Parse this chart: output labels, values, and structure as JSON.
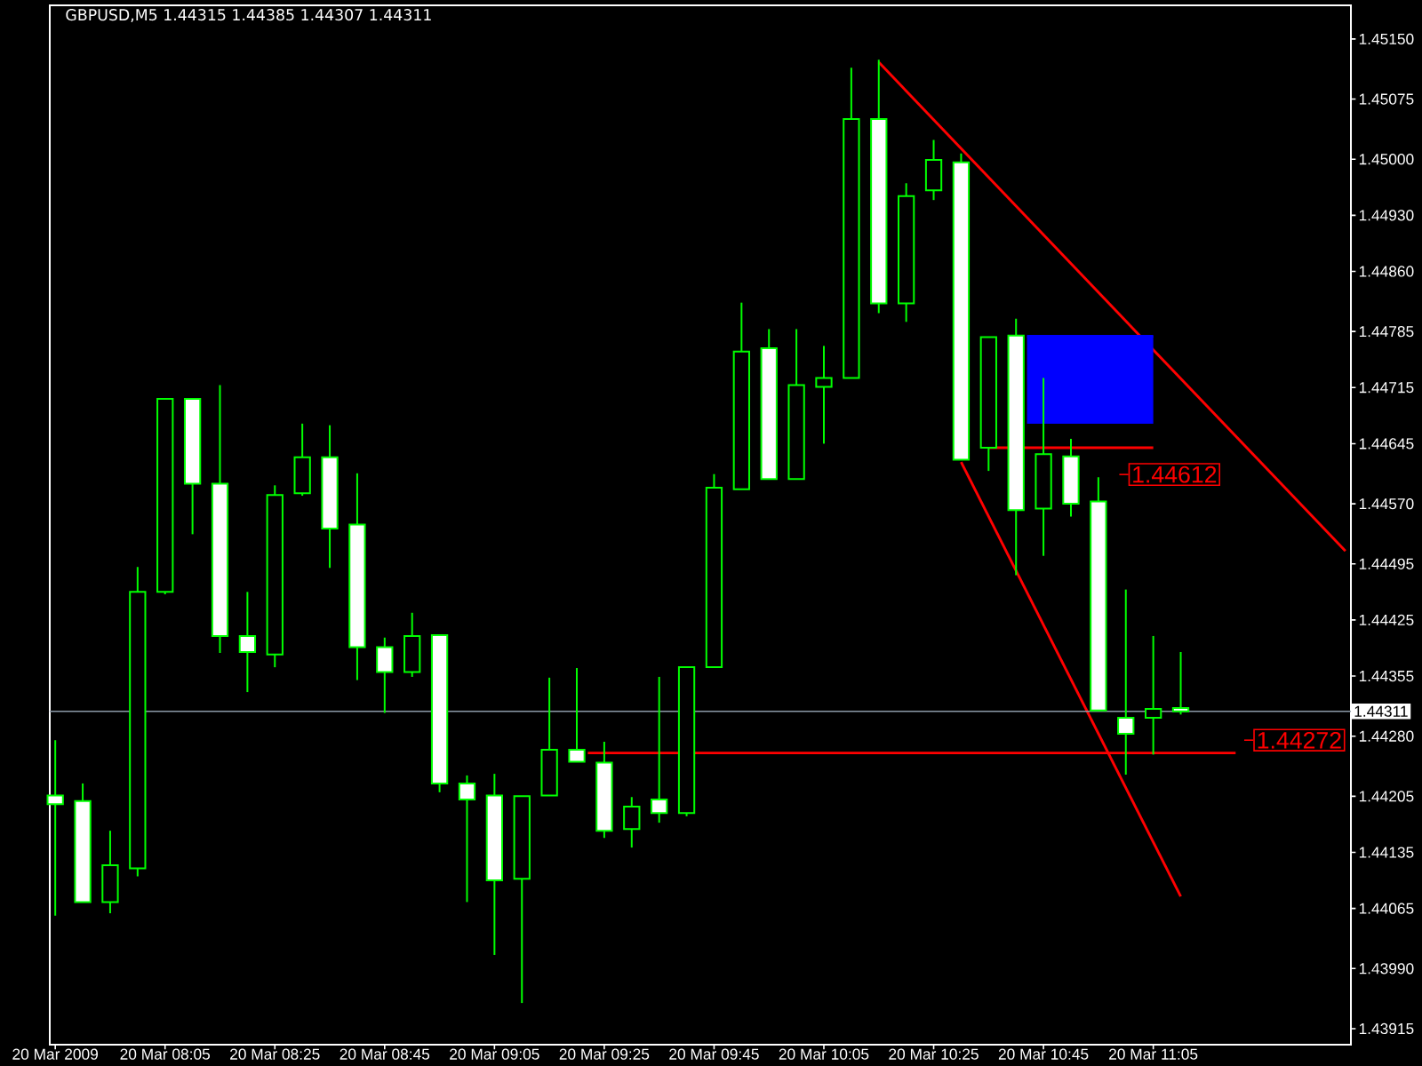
{
  "chart_data": {
    "type": "candlestick",
    "title": "GBPUSD,M5  1.44315 1.44385 1.44307 1.44311",
    "color": "#00ff00",
    "x": [
      "2009-03-20T07:45",
      "2009-03-20T07:50",
      "2009-03-20T07:55",
      "2009-03-20T08:00",
      "2009-03-20T08:05",
      "2009-03-20T08:10",
      "2009-03-20T08:15",
      "2009-03-20T08:20",
      "2009-03-20T08:25",
      "2009-03-20T08:30",
      "2009-03-20T08:35",
      "2009-03-20T08:40",
      "2009-03-20T08:45",
      "2009-03-20T08:50",
      "2009-03-20T08:55",
      "2009-03-20T09:00",
      "2009-03-20T09:05",
      "2009-03-20T09:10",
      "2009-03-20T09:15",
      "2009-03-20T09:20",
      "2009-03-20T09:25",
      "2009-03-20T09:30",
      "2009-03-20T09:35",
      "2009-03-20T09:40",
      "2009-03-20T09:45",
      "2009-03-20T09:50",
      "2009-03-20T09:55",
      "2009-03-20T10:00",
      "2009-03-20T10:05",
      "2009-03-20T10:10",
      "2009-03-20T10:15",
      "2009-03-20T10:20",
      "2009-03-20T10:25",
      "2009-03-20T10:30",
      "2009-03-20T10:35",
      "2009-03-20T10:40",
      "2009-03-20T10:45",
      "2009-03-20T10:50",
      "2009-03-20T10:55",
      "2009-03-20T11:00",
      "2009-03-20T11:05",
      "2009-03-20T11:10"
    ],
    "ohlc": [
      [
        1.44206,
        1.44275,
        1.44056,
        1.44195
      ],
      [
        1.44199,
        1.44221,
        1.44073,
        1.44073
      ],
      [
        1.44073,
        1.44162,
        1.44059,
        1.44119
      ],
      [
        1.44115,
        1.44491,
        1.44105,
        1.4446
      ],
      [
        1.4446,
        1.44701,
        1.44457,
        1.44701
      ],
      [
        1.44701,
        1.44701,
        1.44532,
        1.44595
      ],
      [
        1.44595,
        1.44718,
        1.44384,
        1.44405
      ],
      [
        1.44405,
        1.4446,
        1.44335,
        1.44385
      ],
      [
        1.44382,
        1.44593,
        1.44366,
        1.44581
      ],
      [
        1.44583,
        1.4467,
        1.4458,
        1.44628
      ],
      [
        1.44628,
        1.44668,
        1.4449,
        1.44539
      ],
      [
        1.44544,
        1.44608,
        1.4435,
        1.44391
      ],
      [
        1.44391,
        1.44403,
        1.44309,
        1.4436
      ],
      [
        1.4436,
        1.44434,
        1.44354,
        1.44405
      ],
      [
        1.44406,
        1.44406,
        1.4421,
        1.44221
      ],
      [
        1.44221,
        1.44231,
        1.44073,
        1.44201
      ],
      [
        1.44206,
        1.44233,
        1.44007,
        1.441
      ],
      [
        1.44102,
        1.44205,
        1.43947,
        1.44205
      ],
      [
        1.44206,
        1.44353,
        1.44206,
        1.44263
      ],
      [
        1.44263,
        1.44365,
        1.44248,
        1.44248
      ],
      [
        1.44247,
        1.44273,
        1.44153,
        1.44162
      ],
      [
        1.44164,
        1.44204,
        1.44141,
        1.44192
      ],
      [
        1.44201,
        1.44354,
        1.44172,
        1.44184
      ],
      [
        1.44184,
        1.44366,
        1.4418,
        1.44366
      ],
      [
        1.44366,
        1.44607,
        1.44366,
        1.4459
      ],
      [
        1.44588,
        1.44821,
        1.44588,
        1.4476
      ],
      [
        1.44764,
        1.44788,
        1.44601,
        1.44601
      ],
      [
        1.44601,
        1.44788,
        1.44601,
        1.44718
      ],
      [
        1.44716,
        1.44767,
        1.44645,
        1.44727
      ],
      [
        1.44727,
        1.45114,
        1.44727,
        1.4505
      ],
      [
        1.4505,
        1.45124,
        1.44808,
        1.4482
      ],
      [
        1.4482,
        1.4497,
        1.44797,
        1.44954
      ],
      [
        1.44961,
        1.45024,
        1.44949,
        1.44999
      ],
      [
        1.44996,
        1.45007,
        1.44625,
        1.44625
      ],
      [
        1.4464,
        1.44778,
        1.44611,
        1.44778
      ],
      [
        1.4478,
        1.44801,
        1.44481,
        1.44562
      ],
      [
        1.44564,
        1.44727,
        1.44505,
        1.44632
      ],
      [
        1.44629,
        1.44651,
        1.44554,
        1.4457
      ],
      [
        1.44573,
        1.44603,
        1.44312,
        1.44312
      ],
      [
        1.44303,
        1.44463,
        1.44232,
        1.44283
      ],
      [
        1.44303,
        1.44405,
        1.44257,
        1.44314
      ],
      [
        1.44315,
        1.44385,
        1.44307,
        1.44311
      ]
    ],
    "series": [
      {
        "type": "line",
        "color": "#ff0000",
        "x": [
          "2009-03-20T10:15",
          "2009-03-20T11:40"
        ],
        "values": [
          1.45121,
          1.44511
        ]
      },
      {
        "type": "line",
        "color": "#ff0000",
        "x": [
          "2009-03-20T10:30",
          "2009-03-20T11:10"
        ],
        "values": [
          1.44622,
          1.4408
        ]
      },
      {
        "type": "line",
        "color": "#ff0000",
        "x": [
          "2009-03-20T10:35",
          "2009-03-20T11:05"
        ],
        "values": [
          1.4464,
          1.4464
        ]
      },
      {
        "type": "line",
        "color": "#ff0000",
        "x": [
          "2009-03-20T09:22",
          "2009-03-20T11:20"
        ],
        "values": [
          1.44259,
          1.44259
        ]
      },
      {
        "type": "line",
        "color": "#0000ff",
        "x": [
          "2009-03-20T10:42",
          "2009-03-20T11:05"
        ],
        "values": [
          1.44779,
          1.44779
        ],
        "lower": [
          1.4467,
          1.4467
        ],
        "upper": [
          1.44779,
          1.44779
        ]
      }
    ],
    "ref_lines": [
      {
        "axis": "y",
        "value": 1.44311,
        "label": "1.44311",
        "color": "#8c9aa8"
      }
    ],
    "annotations": [
      "1.44612",
      "1.44272"
    ],
    "xlim": [
      "2009-03-20T07:44",
      "2009-03-20T11:41"
    ],
    "xticks": [
      {
        "value": "2009-03-20T07:45",
        "label": "20 Mar 2009"
      },
      {
        "value": "2009-03-20T08:05",
        "label": "20 Mar 08:05"
      },
      {
        "value": "2009-03-20T08:25",
        "label": "20 Mar 08:25"
      },
      {
        "value": "2009-03-20T08:45",
        "label": "20 Mar 08:45"
      },
      {
        "value": "2009-03-20T09:05",
        "label": "20 Mar 09:05"
      },
      {
        "value": "2009-03-20T09:25",
        "label": "20 Mar 09:25"
      },
      {
        "value": "2009-03-20T09:45",
        "label": "20 Mar 09:45"
      },
      {
        "value": "2009-03-20T10:05",
        "label": "20 Mar 10:05"
      },
      {
        "value": "2009-03-20T10:25",
        "label": "20 Mar 10:25"
      },
      {
        "value": "2009-03-20T10:45",
        "label": "20 Mar 10:45"
      },
      {
        "value": "2009-03-20T11:05",
        "label": "20 Mar 11:05"
      }
    ],
    "ylim": [
      1.43895,
      1.45192
    ],
    "yticks": [
      {
        "value": 1.4515,
        "label": "1.45150"
      },
      {
        "value": 1.45075,
        "label": "1.45075"
      },
      {
        "value": 1.45,
        "label": "1.45000"
      },
      {
        "value": 1.4493,
        "label": "1.44930"
      },
      {
        "value": 1.4486,
        "label": "1.44860"
      },
      {
        "value": 1.44785,
        "label": "1.44785"
      },
      {
        "value": 1.44715,
        "label": "1.44715"
      },
      {
        "value": 1.44645,
        "label": "1.44645"
      },
      {
        "value": 1.4457,
        "label": "1.44570"
      },
      {
        "value": 1.44495,
        "label": "1.44495"
      },
      {
        "value": 1.44425,
        "label": "1.44425"
      },
      {
        "value": 1.44355,
        "label": "1.44355"
      },
      {
        "value": 1.4428,
        "label": "1.44280"
      },
      {
        "value": 1.44205,
        "label": "1.44205"
      },
      {
        "value": 1.44135,
        "label": "1.44135"
      },
      {
        "value": 1.44065,
        "label": "1.44065"
      },
      {
        "value": 1.4399,
        "label": "1.43990"
      },
      {
        "value": 1.43915,
        "label": "1.43915"
      }
    ]
  }
}
